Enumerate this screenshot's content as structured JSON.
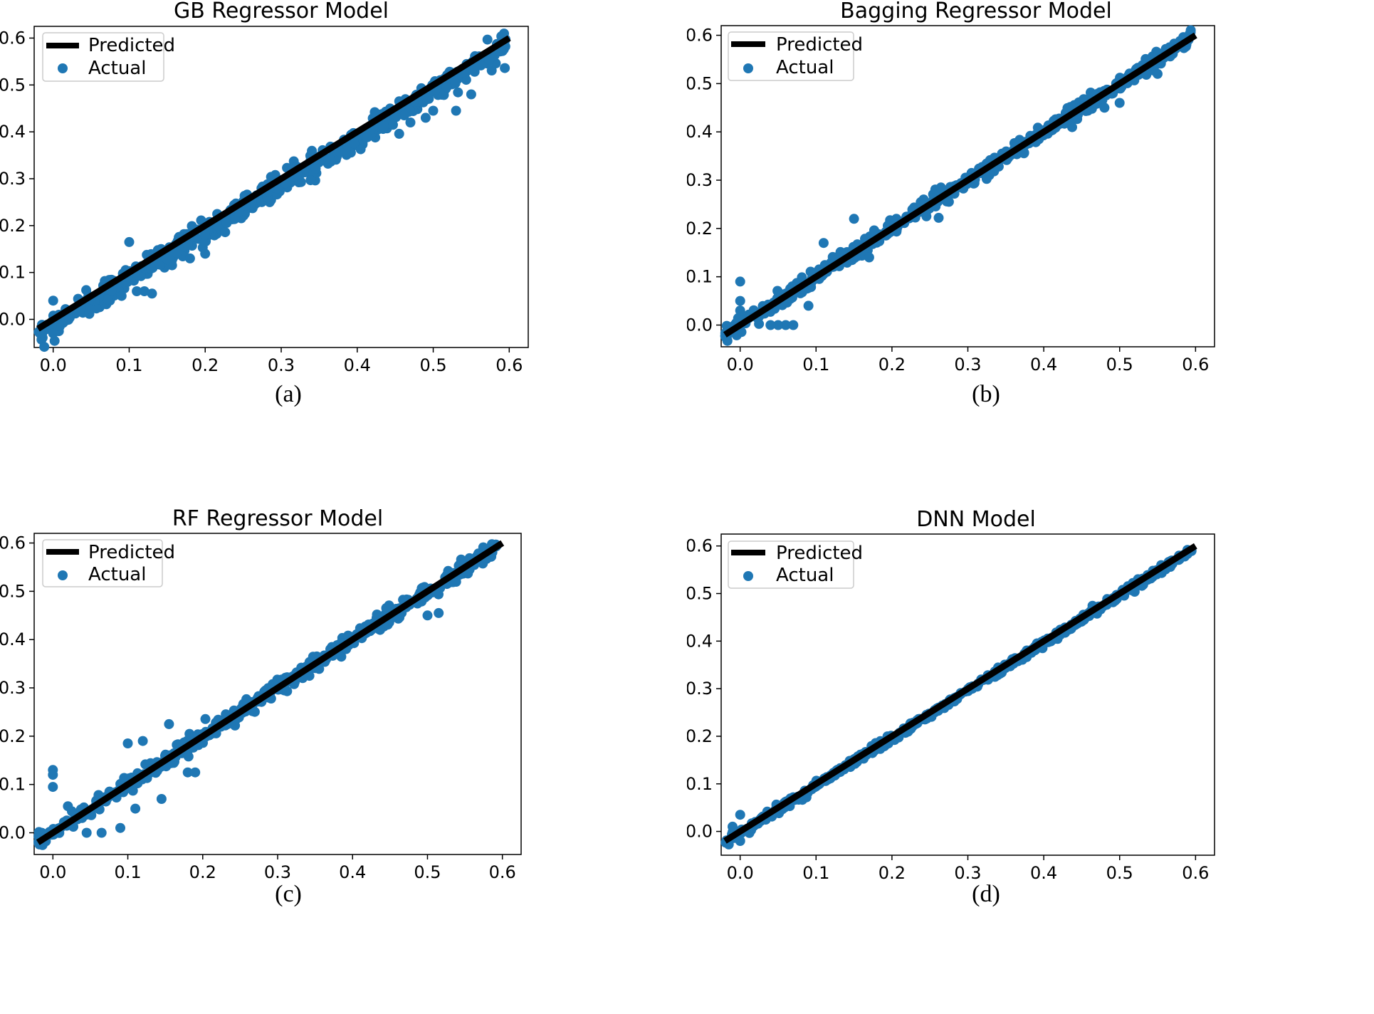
{
  "colors": {
    "actual": "#1f77b4",
    "predicted": "#000000",
    "axis": "#000000",
    "legend_border": "#cccccc"
  },
  "chart_data": [
    {
      "id": "a",
      "type": "scatter",
      "title": "GB Regressor Model",
      "caption": "(a)",
      "xlim": [
        -0.025,
        0.625
      ],
      "ylim": [
        -0.06,
        0.625
      ],
      "xticks": [
        "0.0",
        "0.1",
        "0.2",
        "0.3",
        "0.4",
        "0.5",
        "0.6"
      ],
      "yticks": [
        "0.0",
        "0.1",
        "0.2",
        "0.3",
        "0.4",
        "0.5",
        "0.6"
      ],
      "legend": {
        "position": "top-left",
        "entries": [
          "Predicted",
          "Actual"
        ]
      },
      "predicted_line": {
        "x": [
          -0.02,
          0.6
        ],
        "y": [
          -0.02,
          0.6
        ]
      },
      "actual": {
        "noise": 0.012,
        "bias": -0.012,
        "outliers": [
          [
            0.1,
            0.165
          ],
          [
            0.13,
            0.055
          ],
          [
            0.12,
            0.06
          ],
          [
            0.55,
            0.48
          ],
          [
            0.53,
            0.445
          ],
          [
            0.49,
            0.43
          ],
          [
            0.5,
            0.445
          ],
          [
            0.47,
            0.42
          ],
          [
            0.2,
            0.14
          ],
          [
            0.18,
            0.13
          ],
          [
            0.0,
            -0.03
          ],
          [
            0.0,
            0.04
          ],
          [
            0.09,
            0.05
          ],
          [
            0.11,
            0.06
          ]
        ]
      }
    },
    {
      "id": "b",
      "type": "scatter",
      "title": "Bagging Regressor Model",
      "caption": "(b)",
      "xlim": [
        -0.025,
        0.625
      ],
      "ylim": [
        -0.045,
        0.62
      ],
      "xticks": [
        "0.0",
        "0.1",
        "0.2",
        "0.3",
        "0.4",
        "0.5",
        "0.6"
      ],
      "yticks": [
        "0.0",
        "0.1",
        "0.2",
        "0.3",
        "0.4",
        "0.5",
        "0.6"
      ],
      "legend": {
        "position": "top-left",
        "entries": [
          "Predicted",
          "Actual"
        ]
      },
      "predicted_line": {
        "x": [
          -0.02,
          0.6
        ],
        "y": [
          -0.02,
          0.6
        ]
      },
      "actual": {
        "noise": 0.008,
        "bias": 0.0,
        "outliers": [
          [
            0.0,
            0.09
          ],
          [
            0.0,
            0.05
          ],
          [
            0.0,
            0.03
          ],
          [
            0.15,
            0.22
          ],
          [
            0.11,
            0.17
          ],
          [
            0.5,
            0.46
          ],
          [
            0.48,
            0.45
          ],
          [
            0.09,
            0.04
          ],
          [
            0.06,
            0.0
          ],
          [
            0.05,
            0.0
          ],
          [
            0.07,
            0.0
          ],
          [
            0.04,
            0.0
          ],
          [
            0.17,
            0.14
          ],
          [
            0.55,
            0.52
          ]
        ]
      }
    },
    {
      "id": "c",
      "type": "scatter",
      "title": "RF Regressor Model",
      "caption": "(c)",
      "xlim": [
        -0.025,
        0.625
      ],
      "ylim": [
        -0.045,
        0.62
      ],
      "xticks": [
        "0.0",
        "0.1",
        "0.2",
        "0.3",
        "0.4",
        "0.5",
        "0.6"
      ],
      "yticks": [
        "0.0",
        "0.1",
        "0.2",
        "0.3",
        "0.4",
        "0.5",
        "0.6"
      ],
      "legend": {
        "position": "top-left",
        "entries": [
          "Predicted",
          "Actual"
        ]
      },
      "predicted_line": {
        "x": [
          -0.02,
          0.6
        ],
        "y": [
          -0.02,
          0.6
        ]
      },
      "actual": {
        "noise": 0.008,
        "bias": 0.0,
        "outliers": [
          [
            0.0,
            0.13
          ],
          [
            0.0,
            0.12
          ],
          [
            0.0,
            0.095
          ],
          [
            0.1,
            0.185
          ],
          [
            0.12,
            0.19
          ],
          [
            0.155,
            0.225
          ],
          [
            0.11,
            0.05
          ],
          [
            0.145,
            0.07
          ],
          [
            0.18,
            0.125
          ],
          [
            0.19,
            0.125
          ],
          [
            0.09,
            0.01
          ],
          [
            0.5,
            0.45
          ],
          [
            0.515,
            0.455
          ],
          [
            0.065,
            0.0
          ],
          [
            0.045,
            0.0
          ],
          [
            0.02,
            0.055
          ]
        ]
      }
    },
    {
      "id": "d",
      "type": "scatter",
      "title": "DNN Model",
      "caption": "(d)",
      "xlim": [
        -0.025,
        0.625
      ],
      "ylim": [
        -0.05,
        0.625
      ],
      "xticks": [
        "0.0",
        "0.1",
        "0.2",
        "0.3",
        "0.4",
        "0.5",
        "0.6"
      ],
      "yticks": [
        "0.0",
        "0.1",
        "0.2",
        "0.3",
        "0.4",
        "0.5",
        "0.6"
      ],
      "legend": {
        "position": "top-left",
        "entries": [
          "Predicted",
          "Actual"
        ]
      },
      "predicted_line": {
        "x": [
          -0.02,
          0.6
        ],
        "y": [
          -0.02,
          0.6
        ]
      },
      "actual": {
        "noise": 0.004,
        "bias": -0.004,
        "outliers": [
          [
            0.0,
            0.035
          ],
          [
            0.0,
            -0.02
          ],
          [
            -0.01,
            0.01
          ]
        ]
      }
    }
  ]
}
